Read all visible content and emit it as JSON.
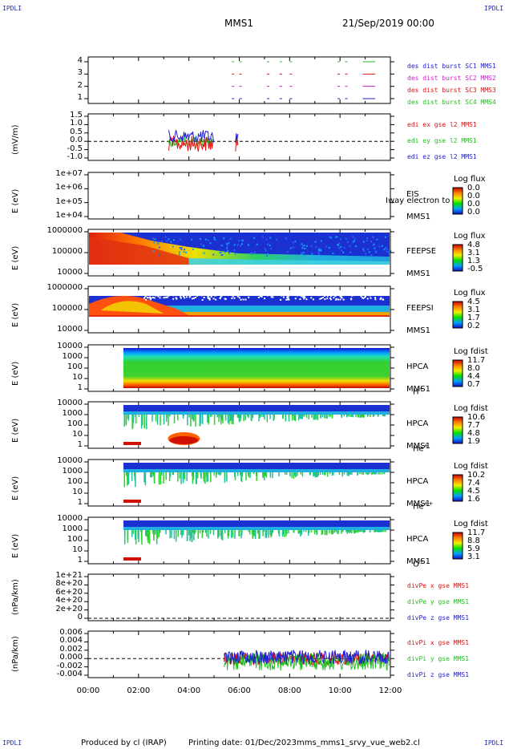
{
  "header": {
    "corner_label": "IPDLI",
    "spacecraft": "MMS1",
    "datetime": "21/Sep/2019 00:00"
  },
  "footer": {
    "produced_by": "Produced by cl (IRAP)",
    "printing_date": "Printing date: 01/Dec/2023",
    "filename": "mms_mms1_srvy_vue_web2.cl"
  },
  "x_axis": {
    "range_hours": [
      0,
      12
    ],
    "ticks": [
      "00:00",
      "02:00",
      "04:00",
      "06:00",
      "08:00",
      "10:00",
      "12:00"
    ]
  },
  "colors": {
    "red": "#e01010",
    "green": "#20c020",
    "blue": "#2020d0",
    "magenta": "#d020d0"
  },
  "chart_data": [
    {
      "id": "burst",
      "type": "scatter",
      "ylim": [
        0.5,
        4.5
      ],
      "yticks": [
        "4",
        "3",
        "2",
        "1"
      ],
      "legend": [
        "des dist burst SC1 MMS1",
        "des dist burst SC2 MMS2",
        "des dist burst SC3 MMS3",
        "des dist burst SC4 MMS4"
      ],
      "segments": [
        [
          5.7,
          5.8
        ],
        [
          6.0,
          6.1
        ],
        [
          7.1,
          7.2
        ],
        [
          7.6,
          7.7
        ],
        [
          8.0,
          8.1
        ],
        [
          9.9,
          10.0
        ],
        [
          10.2,
          10.3
        ],
        [
          10.9,
          11.4
        ]
      ]
    },
    {
      "id": "edi",
      "type": "line",
      "ylabel": "(mV/m)",
      "ylim": [
        -1.2,
        1.6
      ],
      "yticks": [
        "1.5",
        "1.0",
        "0.5",
        "0.0",
        "-0.5",
        "-1.0"
      ],
      "legend": [
        "edi ex gse l2 MMS1",
        "edi ey gse l2 MMS1",
        "edi ez gse l2 MMS1"
      ],
      "active_intervals": [
        [
          3.2,
          5.0
        ],
        [
          5.85,
          5.95
        ]
      ]
    },
    {
      "id": "eis",
      "type": "heatmap",
      "ylabel": "E (eV)",
      "yticks": [
        "1e+07",
        "1e+06",
        "1e+05",
        "1e+04"
      ],
      "right_labels": [
        "EIS",
        "MMS1"
      ],
      "overflow_text": "Iway electron to",
      "colorbar": {
        "title": "Log flux",
        "values": [
          "0.0",
          "0.0",
          "0.0",
          "0.0"
        ]
      }
    },
    {
      "id": "feepse",
      "type": "heatmap",
      "ylabel": "E (eV)",
      "yticks": [
        "1000000",
        "100000",
        "10000"
      ],
      "right_labels": [
        "FEEPSE",
        "MMS1"
      ],
      "colorbar": {
        "title": "Log flux",
        "values": [
          "4.8",
          "3.1",
          "1.3",
          "-0.5"
        ]
      }
    },
    {
      "id": "feepsi",
      "type": "heatmap",
      "ylabel": "E (eV)",
      "yticks": [
        "1000000",
        "100000",
        "10000"
      ],
      "right_labels": [
        "FEEPSI",
        "MMS1"
      ],
      "colorbar": {
        "title": "Log flux",
        "values": [
          "4.5",
          "3.1",
          "1.7",
          "0.2"
        ]
      }
    },
    {
      "id": "hpca_h",
      "type": "heatmap",
      "ylabel": "E (eV)",
      "yticks": [
        "10000",
        "1000",
        "100",
        "10",
        "1"
      ],
      "right_labels": [
        "HPCA",
        "MMS1"
      ],
      "species": "H",
      "species_sup": "+",
      "colorbar": {
        "title": "Log fdist",
        "values": [
          "11.7",
          "8.0",
          "4.4",
          "0.7"
        ]
      }
    },
    {
      "id": "hpca_he",
      "type": "heatmap",
      "ylabel": "E (eV)",
      "yticks": [
        "10000",
        "1000",
        "100",
        "10",
        "1"
      ],
      "right_labels": [
        "HPCA",
        "MMS1"
      ],
      "species": "He",
      "species_sup": "+",
      "colorbar": {
        "title": "Log fdist",
        "values": [
          "10.6",
          "7.7",
          "4.8",
          "1.9"
        ]
      }
    },
    {
      "id": "hpca_he2",
      "type": "heatmap",
      "ylabel": "E (eV)",
      "yticks": [
        "10000",
        "1000",
        "100",
        "10",
        "1"
      ],
      "right_labels": [
        "HPCA",
        "MMS1"
      ],
      "species": "He",
      "species_sup": "++",
      "colorbar": {
        "title": "Log fdist",
        "values": [
          "10.2",
          "7.4",
          "4.5",
          "1.6"
        ]
      }
    },
    {
      "id": "hpca_o",
      "type": "heatmap",
      "ylabel": "E (eV)",
      "yticks": [
        "10000",
        "1000",
        "100",
        "10",
        "1"
      ],
      "right_labels": [
        "HPCA",
        "MMS1"
      ],
      "species": "O",
      "species_sup": "+",
      "colorbar": {
        "title": "Log fdist",
        "values": [
          "11.7",
          "8.8",
          "5.9",
          "3.1"
        ]
      }
    },
    {
      "id": "divpe",
      "type": "line",
      "ylabel": "(nPa/km)",
      "ylim": [
        -1e+20,
        1.1e+21
      ],
      "yticks": [
        "1e+21",
        "8e+20",
        "6e+20",
        "4e+20",
        "2e+20",
        "0"
      ],
      "legend": [
        "divPe x gse MMS1",
        "divPe y gse MMS1",
        "divPe z gse MMS1"
      ]
    },
    {
      "id": "divpi",
      "type": "line",
      "ylabel": "(nPa/km)",
      "ylim": [
        -0.006,
        0.007
      ],
      "yticks": [
        "0.006",
        "0.004",
        "0.002",
        "0.000",
        "-0.002",
        "-0.004"
      ],
      "legend": [
        "divPi x gse MMS1",
        "divPi y gse MMS1",
        "divPi z gse MMS1"
      ],
      "active_interval": [
        5.4,
        12
      ]
    }
  ]
}
